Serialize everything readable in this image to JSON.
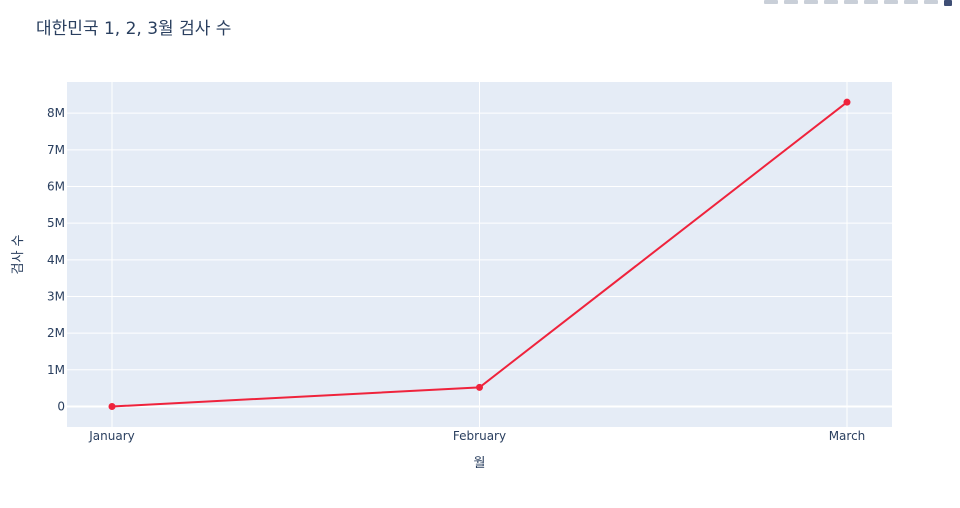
{
  "toolbar": {
    "icons": [
      "camera-icon",
      "zoom-icon",
      "pan-icon",
      "box-select-icon",
      "lasso-icon",
      "zoom-in-icon",
      "zoom-out-icon",
      "autoscale-icon",
      "reset-axes-icon",
      "plotly-logo-icon"
    ]
  },
  "chart_data": {
    "type": "line",
    "title": "대한민국 1, 2, 3월 검사 수",
    "xlabel": "월",
    "ylabel": "검사 수",
    "categories": [
      "January",
      "February",
      "March"
    ],
    "series": [
      {
        "values": [
          0,
          520000,
          8300000
        ],
        "color": "#ef233c"
      }
    ],
    "ylim": [
      -560000,
      8850000
    ],
    "yticks": [
      0,
      1000000,
      2000000,
      3000000,
      4000000,
      5000000,
      6000000,
      7000000,
      8000000
    ],
    "ytick_labels": [
      "0",
      "1M",
      "2M",
      "3M",
      "4M",
      "5M",
      "6M",
      "7M",
      "8M"
    ],
    "grid": true,
    "plot_bgcolor": "#e5ecf6",
    "legend": "none"
  }
}
